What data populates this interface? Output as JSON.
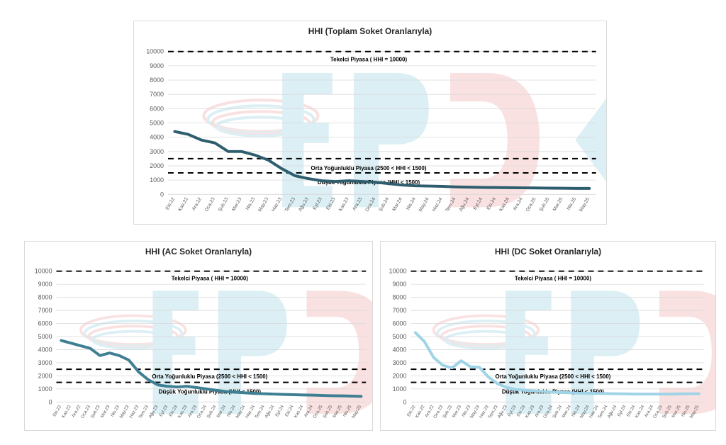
{
  "colors": {
    "total_line": "#2e5e6e",
    "ac_line": "#3f7f93",
    "dc_line": "#9fd3e6",
    "threshold": "#000000",
    "grid": "#d9d9d9",
    "watermark_blue": "#bfe3ec",
    "watermark_red": "#f6c9c9"
  },
  "watermark_text": "EPDK",
  "chart_data": [
    {
      "type": "line",
      "title": "HHI (Toplam Soket Oranlarıyla)",
      "xlabel": "",
      "ylabel": "",
      "ylim": [
        0,
        10000
      ],
      "y_ticks": [
        "0",
        "1000",
        "2000",
        "3000",
        "4000",
        "5000",
        "6000",
        "7000",
        "8000",
        "9000",
        "10000"
      ],
      "categories": [
        "Eki.22",
        "Kas.22",
        "Ara.22",
        "Oca.23",
        "Şub.23",
        "Mar.23",
        "Nis.23",
        "May.23",
        "Haz.23",
        "Tem.23",
        "Ağu.23",
        "Eyl.23",
        "Eki.23",
        "Kas.23",
        "Ara.23",
        "Oca.24",
        "Şub.24",
        "Mar.24",
        "Nis.24",
        "May.24",
        "Haz.24",
        "Tem.24",
        "Ağu.24",
        "Eyl.24",
        "Eki.24",
        "Kas.24",
        "Ara.24",
        "Oca.25",
        "Şub.25",
        "Mar.25",
        "Nis.25",
        "May.25"
      ],
      "series": [
        {
          "values": [
            4400,
            4200,
            3800,
            3600,
            3000,
            3000,
            2750,
            2400,
            1800,
            1300,
            1100,
            950,
            900,
            950,
            900,
            850,
            750,
            650,
            600,
            580,
            560,
            520,
            500,
            490,
            480,
            470,
            460,
            450,
            440,
            430,
            420,
            420
          ]
        }
      ],
      "reference_lines": [
        {
          "value": 10000,
          "label": "Tekelci Piyasa ( HHI = 10000)"
        },
        {
          "value": 2500,
          "label": "Orta Yoğunluklu Piyasa (2500 < HHI < 1500)"
        },
        {
          "value": 1500,
          "label": "Düşük Yoğunluklu Piyasa (HHI < 1500)"
        }
      ],
      "grid": true,
      "legend": "none"
    },
    {
      "type": "line",
      "title": "HHI (AC Soket Oranlarıyla)",
      "xlabel": "",
      "ylabel": "",
      "ylim": [
        0,
        10000
      ],
      "y_ticks": [
        "0",
        "1000",
        "2000",
        "3000",
        "4000",
        "5000",
        "6000",
        "7000",
        "8000",
        "9000",
        "10000"
      ],
      "categories": [
        "Eki.22",
        "Kas.22",
        "Ara.22",
        "Oca.23",
        "Şub.23",
        "Mar.23",
        "Nis.23",
        "May.23",
        "Haz.23",
        "Tem.23",
        "Ağu.23",
        "Eyl.23",
        "Eki.23",
        "Kas.23",
        "Ara.23",
        "Oca.24",
        "Şub.24",
        "Mar.24",
        "Nis.24",
        "May.24",
        "Haz.24",
        "Tem.24",
        "Ağu.24",
        "Eyl.24",
        "Eki.24",
        "Kas.24",
        "Ara.24",
        "Oca.25",
        "Şub.25",
        "Mar.25",
        "Nis.25",
        "May.25"
      ],
      "series": [
        {
          "values": [
            4700,
            4500,
            4300,
            4100,
            3550,
            3750,
            3550,
            3200,
            2300,
            1700,
            1300,
            1200,
            1150,
            1200,
            1100,
            1000,
            900,
            800,
            750,
            700,
            650,
            630,
            600,
            580,
            560,
            540,
            520,
            500,
            480,
            470,
            450,
            430
          ]
        }
      ],
      "reference_lines": [
        {
          "value": 10000,
          "label": "Tekelci Piyasa ( HHI = 10000)"
        },
        {
          "value": 2500,
          "label": "Orta Yoğunluklu Piyasa (2500 < HHI < 1500)"
        },
        {
          "value": 1500,
          "label": "Düşük Yoğunluklu Piyasa (HHI < 1500)"
        }
      ],
      "grid": true,
      "legend": "none"
    },
    {
      "type": "line",
      "title": "HHI (DC Soket Oranlarıyla)",
      "xlabel": "",
      "ylabel": "",
      "ylim": [
        0,
        10000
      ],
      "y_ticks": [
        "0",
        "1000",
        "2000",
        "3000",
        "4000",
        "5000",
        "6000",
        "7000",
        "8000",
        "9000",
        "10000"
      ],
      "categories": [
        "Eki.22",
        "Kas.22",
        "Ara.22",
        "Oca.23",
        "Şub.23",
        "Mar.23",
        "Nis.23",
        "May.23",
        "Haz.23",
        "Tem.23",
        "Ağu.23",
        "Eyl.23",
        "Eki.23",
        "Kas.23",
        "Ara.23",
        "Oca.24",
        "Şub.24",
        "Mar.24",
        "Nis.24",
        "May.24",
        "Haz.24",
        "Tem.24",
        "Ağu.24",
        "Eyl.24",
        "Eki.24",
        "Kas.24",
        "Ara.24",
        "Oca.25",
        "Şub.25",
        "Mar.25",
        "Nis.25",
        "May.25"
      ],
      "series": [
        {
          "values": [
            5300,
            4600,
            3400,
            2800,
            2600,
            3150,
            2700,
            2650,
            1900,
            1400,
            1100,
            950,
            900,
            850,
            800,
            750,
            720,
            700,
            680,
            660,
            650,
            640,
            630,
            620,
            610,
            600,
            600,
            600,
            610,
            620,
            630,
            630
          ]
        }
      ],
      "reference_lines": [
        {
          "value": 10000,
          "label": "Tekelci Piyasa ( HHI = 10000)"
        },
        {
          "value": 2500,
          "label": "Orta Yoğunluklu Piyasa (2500 < HHI < 1500)"
        },
        {
          "value": 1500,
          "label": "Düşük Yoğunluklu Piyasa (HHI < 1500)"
        }
      ],
      "grid": true,
      "legend": "none"
    }
  ]
}
